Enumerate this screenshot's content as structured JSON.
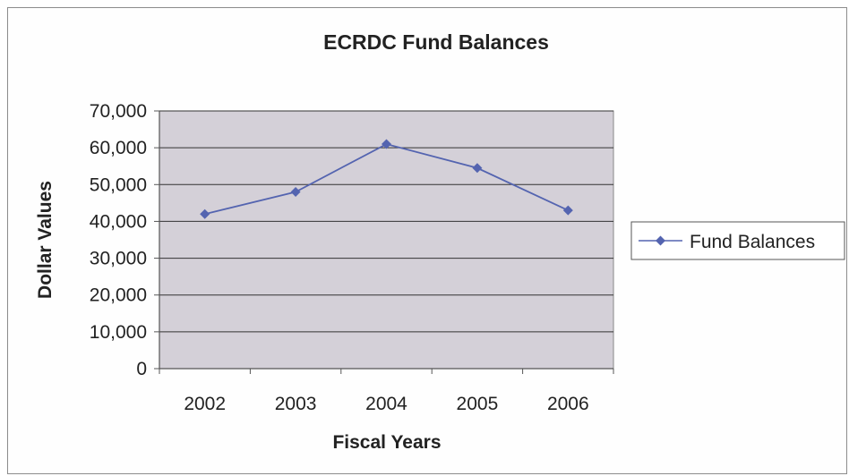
{
  "chart_data": {
    "type": "line",
    "title": "ECRDC Fund Balances",
    "xlabel": "Fiscal Years",
    "ylabel": "Dollar Values",
    "categories": [
      "2002",
      "2003",
      "2004",
      "2005",
      "2006"
    ],
    "y_ticks": [
      "0",
      "10,000",
      "20,000",
      "30,000",
      "40,000",
      "50,000",
      "60,000",
      "70,000"
    ],
    "ylim": [
      0,
      70000
    ],
    "grid": true,
    "legend_position": "right",
    "series": [
      {
        "name": "Fund Balances",
        "values": [
          42000,
          48000,
          61000,
          54500,
          43000
        ],
        "color": "#5464b0",
        "marker": "diamond"
      }
    ],
    "plot_background": "#d4d0d8"
  }
}
